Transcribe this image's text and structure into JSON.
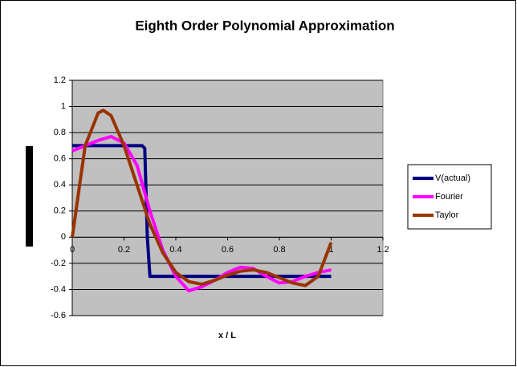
{
  "chart_data": {
    "type": "line",
    "title": "Eighth Order Polynomial Approximation",
    "x_label": "x / L",
    "xlim": [
      0,
      1.2
    ],
    "xticks": [
      0,
      0.2,
      0.4,
      0.6,
      0.8,
      1,
      1.2
    ],
    "ylim": [
      -0.6,
      1.2
    ],
    "yticks": [
      -0.6,
      -0.4,
      -0.2,
      0,
      0.2,
      0.4,
      0.6,
      0.8,
      1,
      1.2
    ],
    "grid": true,
    "legend": "right",
    "series": [
      {
        "name": "V(actual)",
        "color": "#000080",
        "x": [
          0,
          0.27,
          0.28,
          0.29,
          0.3,
          1
        ],
        "values": [
          0.7,
          0.7,
          0.68,
          0.0,
          -0.3,
          -0.3
        ]
      },
      {
        "name": "Fourier",
        "color": "#ff00ff",
        "x": [
          0,
          0.05,
          0.1,
          0.15,
          0.2,
          0.25,
          0.3,
          0.35,
          0.4,
          0.45,
          0.5,
          0.55,
          0.6,
          0.65,
          0.7,
          0.75,
          0.8,
          0.85,
          0.9,
          0.95,
          1
        ],
        "values": [
          0.66,
          0.7,
          0.74,
          0.77,
          0.72,
          0.55,
          0.2,
          -0.1,
          -0.3,
          -0.41,
          -0.38,
          -0.33,
          -0.27,
          -0.23,
          -0.24,
          -0.3,
          -0.35,
          -0.34,
          -0.3,
          -0.27,
          -0.25
        ]
      },
      {
        "name": "Taylor",
        "color": "#993300",
        "x": [
          0,
          0.05,
          0.1,
          0.12,
          0.15,
          0.2,
          0.25,
          0.3,
          0.35,
          0.4,
          0.45,
          0.5,
          0.55,
          0.6,
          0.65,
          0.7,
          0.75,
          0.8,
          0.85,
          0.9,
          0.95,
          1
        ],
        "values": [
          0,
          0.7,
          0.95,
          0.97,
          0.93,
          0.7,
          0.4,
          0.1,
          -0.12,
          -0.27,
          -0.34,
          -0.36,
          -0.33,
          -0.29,
          -0.26,
          -0.25,
          -0.27,
          -0.31,
          -0.35,
          -0.37,
          -0.3,
          -0.04
        ]
      }
    ]
  }
}
